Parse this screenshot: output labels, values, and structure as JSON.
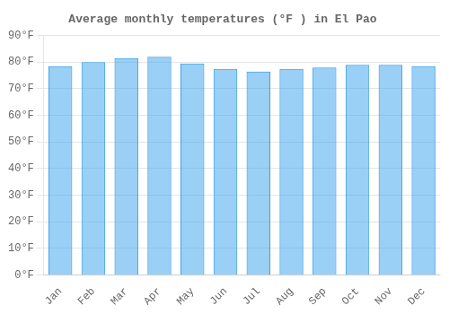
{
  "chart_data": {
    "type": "bar",
    "title": "Average monthly temperatures (°F ) in El Pao",
    "categories": [
      "Jan",
      "Feb",
      "Mar",
      "Apr",
      "May",
      "Jun",
      "Jul",
      "Aug",
      "Sep",
      "Oct",
      "Nov",
      "Dec"
    ],
    "values": [
      78.5,
      80.0,
      81.5,
      82.0,
      79.5,
      77.5,
      76.5,
      77.5,
      78.0,
      79.0,
      79.0,
      78.5
    ],
    "ylim": [
      0,
      90
    ],
    "yticks": [
      {
        "value": 0,
        "label": "0°F"
      },
      {
        "value": 10,
        "label": "10°F"
      },
      {
        "value": 20,
        "label": "20°F"
      },
      {
        "value": 30,
        "label": "30°F"
      },
      {
        "value": 40,
        "label": "40°F"
      },
      {
        "value": 50,
        "label": "50°F"
      },
      {
        "value": 60,
        "label": "60°F"
      },
      {
        "value": 70,
        "label": "70°F"
      },
      {
        "value": 80,
        "label": "80°F"
      },
      {
        "value": 90,
        "label": "90°F"
      }
    ],
    "grid": true
  }
}
